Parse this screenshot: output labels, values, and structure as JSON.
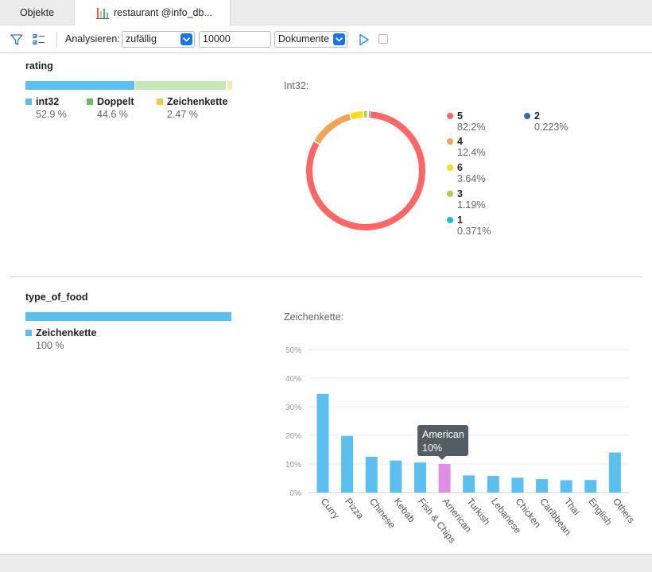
{
  "tabs": [
    {
      "label": "Objekte"
    },
    {
      "label": "restaurant @info_db..."
    }
  ],
  "toolbar": {
    "analyze_label": "Analysieren:",
    "sample_mode": "zufällig",
    "sample_size": "10000",
    "unit": "Dokumente"
  },
  "fields": [
    {
      "name": "rating",
      "types": [
        {
          "name": "int32",
          "percent": "52.9 %",
          "fraction": 0.529,
          "color": "#5bc0f0"
        },
        {
          "name": "Doppelt",
          "percent": "44.6 %",
          "fraction": 0.446,
          "color": "#c6e7b8"
        },
        {
          "name": "Zeichenkette",
          "percent": "2.47 %",
          "fraction": 0.0247,
          "color": "#f6e8b2"
        }
      ],
      "detail_title": "Int32:"
    },
    {
      "name": "type_of_food",
      "types": [
        {
          "name": "Zeichenkette",
          "percent": "100 %",
          "fraction": 1.0,
          "color": "#5bc0f0"
        }
      ],
      "detail_title": "Zeichenkette:"
    }
  ],
  "legend_colors": {
    "int32": "#5bc0f0",
    "Doppelt": "#6cc05a",
    "Zeichenkette": "#f2c94c"
  },
  "chart_data": [
    {
      "type": "pie",
      "title": "Int32:",
      "categories": [
        "5",
        "4",
        "6",
        "3",
        "1",
        "2"
      ],
      "values": [
        82.2,
        12.4,
        3.64,
        1.19,
        0.371,
        0.223
      ],
      "labels": [
        "82.2%",
        "12.4%",
        "3.64%",
        "1.19%",
        "0.371%",
        "0.223%"
      ],
      "colors": [
        "#ff6666",
        "#f4a35a",
        "#f6dc1a",
        "#a5d84a",
        "#15c0c8",
        "#2f6db5"
      ],
      "legend": "right"
    },
    {
      "type": "bar",
      "title": "Zeichenkette:",
      "categories": [
        "Curry",
        "Pizza",
        "Chinese",
        "Kebab",
        "Fish & Chips",
        "American",
        "Turkish",
        "Lebanese",
        "Chicken",
        "Caribbean",
        "Thai",
        "English",
        "Others"
      ],
      "values": [
        34.5,
        19.8,
        12.5,
        11.2,
        10.5,
        10,
        6,
        5.8,
        5.2,
        4.7,
        4.3,
        4.4,
        14
      ],
      "ylim": [
        0,
        50
      ],
      "yticks": [
        "0%",
        "10%",
        "20%",
        "30%",
        "40%",
        "50%"
      ],
      "grid": true,
      "bar_color": "#5bc0f0",
      "highlight_color": "#de8ee4",
      "highlight_index": 5,
      "tooltip": {
        "label": "American",
        "value": "10%"
      }
    }
  ]
}
